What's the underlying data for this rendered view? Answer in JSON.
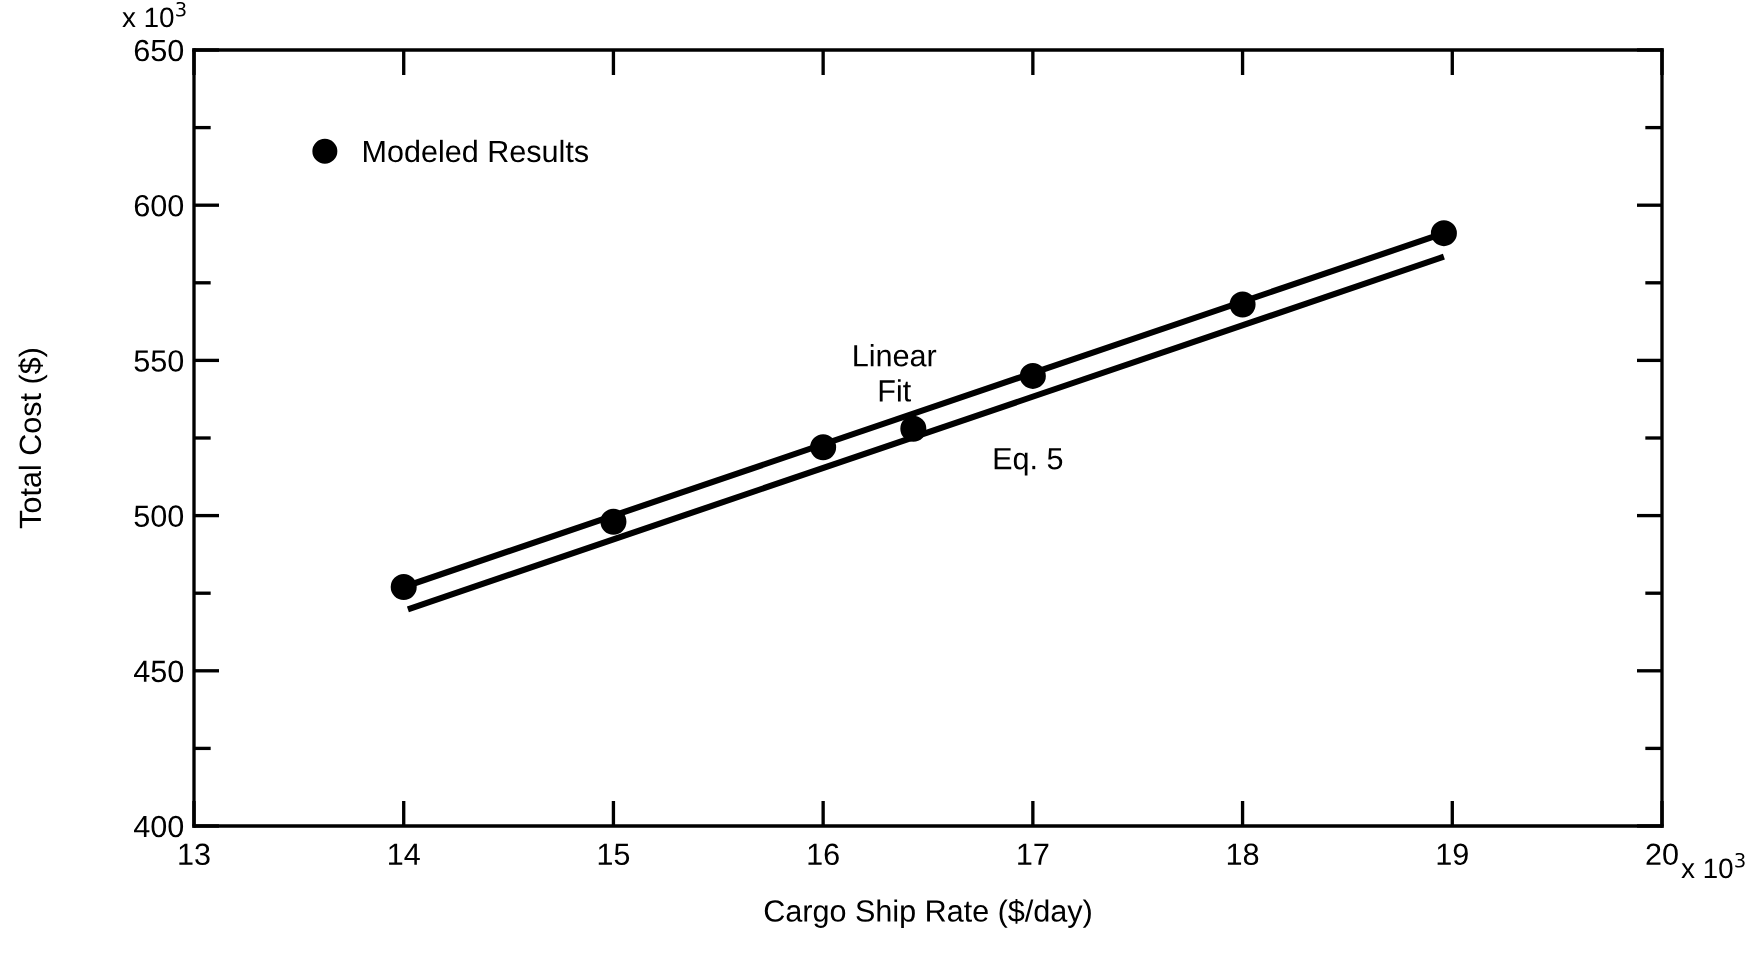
{
  "chart_data": {
    "type": "scatter",
    "xlabel": "Cargo Ship Rate ($/day)",
    "ylabel": "Total Cost ($)",
    "xlim": [
      13,
      20
    ],
    "xticks": [
      13,
      14,
      15,
      16,
      17,
      18,
      19,
      20
    ],
    "ylim": [
      400,
      650
    ],
    "yticks": [
      400,
      {
        "value": 425,
        "label": null
      },
      450,
      {
        "value": 475,
        "label": null
      },
      500,
      {
        "value": 525,
        "label": null
      },
      550,
      {
        "value": 575,
        "label": null
      },
      600,
      {
        "value": 625,
        "label": null
      },
      650
    ],
    "series": [
      {
        "name": "Modeled Results",
        "color": "#000000",
        "marker": "circle",
        "x": [
          14,
          15,
          16,
          16.43,
          17,
          18,
          18.96
        ],
        "values": [
          477,
          498,
          522,
          528,
          545,
          568,
          591
        ]
      },
      {
        "type": "line",
        "color": "#000000",
        "line_style": "solid",
        "marker": "none",
        "x": [
          14,
          18.96
        ],
        "values": [
          477,
          591
        ]
      },
      {
        "type": "line",
        "color": "#000000",
        "line_style": "solid",
        "marker": "none",
        "x": [
          14.02,
          18.96
        ],
        "values": [
          469.8,
          583.4
        ]
      }
    ],
    "annotations": [
      "x 10$^{3}$",
      "x 10$^{3}$",
      "Linear\nFit",
      "Eq. 5"
    ],
    "legend": "top left",
    "grid": false
  }
}
